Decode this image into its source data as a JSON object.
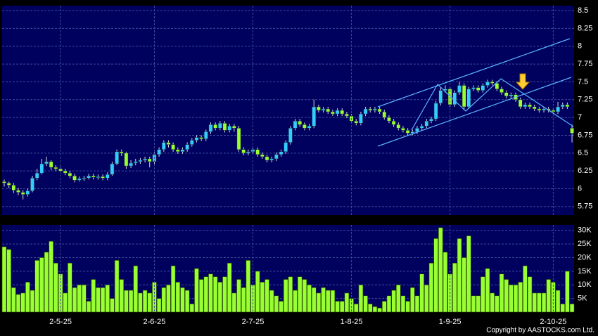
{
  "chart_data": [
    {
      "type": "candlestick",
      "up_color": "#33ccff",
      "down_color": "#99ff33",
      "grid": true,
      "ylim": [
        5.63,
        8.57
      ],
      "yticks": [
        5.75,
        6,
        6.25,
        6.5,
        6.75,
        7,
        7.25,
        7.5,
        7.75,
        8,
        8.25,
        8.5
      ],
      "categories": [
        null,
        null,
        null,
        null,
        null,
        null,
        null,
        null,
        null,
        null,
        null,
        null,
        "2-5-25",
        null,
        null,
        null,
        null,
        null,
        null,
        null,
        null,
        null,
        null,
        null,
        null,
        null,
        null,
        null,
        null,
        null,
        null,
        null,
        "2-6-25",
        null,
        null,
        null,
        null,
        null,
        null,
        null,
        null,
        null,
        null,
        null,
        null,
        null,
        null,
        null,
        null,
        null,
        null,
        null,
        null,
        "2-7-25",
        null,
        null,
        null,
        null,
        null,
        null,
        null,
        null,
        null,
        null,
        null,
        null,
        null,
        null,
        null,
        null,
        null,
        null,
        null,
        null,
        "1-8-25",
        null,
        null,
        null,
        null,
        null,
        null,
        null,
        null,
        null,
        null,
        null,
        null,
        null,
        null,
        null,
        null,
        null,
        null,
        null,
        null,
        "1-9-25",
        null,
        null,
        null,
        null,
        null,
        null,
        null,
        null,
        null,
        null,
        null,
        null,
        null,
        null,
        null,
        null,
        null,
        null,
        null,
        null,
        null,
        "2-10-25",
        null,
        null,
        null,
        null
      ],
      "open": [
        6.1,
        6.08,
        6.05,
        5.98,
        5.95,
        5.92,
        5.97,
        6.15,
        6.22,
        6.35,
        6.38,
        6.3,
        6.28,
        6.25,
        6.22,
        6.18,
        6.12,
        6.14,
        6.15,
        6.18,
        6.16,
        6.17,
        6.15,
        6.2,
        6.35,
        6.52,
        6.5,
        6.32,
        6.36,
        6.38,
        6.4,
        6.42,
        6.38,
        6.48,
        6.55,
        6.65,
        6.62,
        6.55,
        6.52,
        6.55,
        6.62,
        6.68,
        6.72,
        6.7,
        6.8,
        6.9,
        6.85,
        6.92,
        6.82,
        6.88,
        6.85,
        6.55,
        6.5,
        6.52,
        6.55,
        6.48,
        6.45,
        6.4,
        6.42,
        6.48,
        6.52,
        6.65,
        6.85,
        6.95,
        6.9,
        6.85,
        6.88,
        7.15,
        7.1,
        7.12,
        7.08,
        7.05,
        7.1,
        7.05,
        7.02,
        6.95,
        6.92,
        7.05,
        7.12,
        7.1,
        7.12,
        7.08,
        7.0,
        6.95,
        6.9,
        6.85,
        6.82,
        6.78,
        6.8,
        6.85,
        6.88,
        6.95,
        6.98,
        7.2,
        7.38,
        7.4,
        7.18,
        7.35,
        7.45,
        7.15,
        7.4,
        7.42,
        7.38,
        7.45,
        7.5,
        7.48,
        7.4,
        7.35,
        7.3,
        7.32,
        7.25,
        7.15,
        7.18,
        7.15,
        7.12,
        7.1,
        7.12,
        7.1,
        7.08,
        7.15,
        7.18,
        6.85
      ],
      "high": [
        6.13,
        6.1,
        6.08,
        6.01,
        5.98,
        6.0,
        6.18,
        6.28,
        6.42,
        6.45,
        6.4,
        6.33,
        6.31,
        6.28,
        6.25,
        6.21,
        6.17,
        6.18,
        6.21,
        6.21,
        6.2,
        6.2,
        6.23,
        6.38,
        6.55,
        6.55,
        6.52,
        6.4,
        6.42,
        6.43,
        6.45,
        6.45,
        6.51,
        6.58,
        6.68,
        6.68,
        6.65,
        6.58,
        6.58,
        6.65,
        6.71,
        6.75,
        6.75,
        6.83,
        6.93,
        6.93,
        6.95,
        6.95,
        6.91,
        6.91,
        6.88,
        6.58,
        6.55,
        6.58,
        6.58,
        6.51,
        6.48,
        6.45,
        6.51,
        6.55,
        6.68,
        6.88,
        6.98,
        6.98,
        6.93,
        6.91,
        7.25,
        7.18,
        7.15,
        7.15,
        7.11,
        7.13,
        7.13,
        7.08,
        7.05,
        6.98,
        7.08,
        7.15,
        7.15,
        7.15,
        7.15,
        7.11,
        7.03,
        6.98,
        6.93,
        6.88,
        6.85,
        6.83,
        6.88,
        6.91,
        6.98,
        7.01,
        7.23,
        7.42,
        7.45,
        7.43,
        7.38,
        7.5,
        7.48,
        7.43,
        7.45,
        7.45,
        7.48,
        7.53,
        7.53,
        7.51,
        7.43,
        7.38,
        7.35,
        7.35,
        7.28,
        7.21,
        7.21,
        7.18,
        7.15,
        7.15,
        7.15,
        7.13,
        7.22,
        7.21,
        7.21,
        6.9
      ],
      "low": [
        6.03,
        6.01,
        5.94,
        5.91,
        5.85,
        5.89,
        5.95,
        6.12,
        6.2,
        6.32,
        6.26,
        6.25,
        6.22,
        6.19,
        6.15,
        6.09,
        6.1,
        6.11,
        6.13,
        6.13,
        6.13,
        6.12,
        6.12,
        6.18,
        6.33,
        6.46,
        6.28,
        6.29,
        6.33,
        6.35,
        6.37,
        6.3,
        6.35,
        6.45,
        6.52,
        6.58,
        6.52,
        6.49,
        6.49,
        6.52,
        6.59,
        6.65,
        6.67,
        6.67,
        6.77,
        6.82,
        6.82,
        6.79,
        6.79,
        6.8,
        6.52,
        6.47,
        6.47,
        6.49,
        6.45,
        6.42,
        6.37,
        6.37,
        6.39,
        6.45,
        6.49,
        6.62,
        6.82,
        6.87,
        6.82,
        6.82,
        6.85,
        7.07,
        7.07,
        7.05,
        7.02,
        7.02,
        7.02,
        6.99,
        6.92,
        6.89,
        6.89,
        7.02,
        7.07,
        7.07,
        7.05,
        6.97,
        6.92,
        6.87,
        6.82,
        6.79,
        6.75,
        6.75,
        6.77,
        6.82,
        6.85,
        6.92,
        6.95,
        7.17,
        7.35,
        7.15,
        7.15,
        7.32,
        7.1,
        7.12,
        7.37,
        7.35,
        7.35,
        7.42,
        7.45,
        7.37,
        7.32,
        7.27,
        7.27,
        7.22,
        7.12,
        7.12,
        7.12,
        7.09,
        7.07,
        7.07,
        7.07,
        7.05,
        7.05,
        7.12,
        7.12,
        6.65
      ],
      "close": [
        6.08,
        6.05,
        5.98,
        5.95,
        5.92,
        5.97,
        6.15,
        6.22,
        6.35,
        6.38,
        6.3,
        6.28,
        6.25,
        6.22,
        6.18,
        6.12,
        6.14,
        6.15,
        6.18,
        6.16,
        6.17,
        6.15,
        6.2,
        6.35,
        6.52,
        6.5,
        6.32,
        6.36,
        6.38,
        6.4,
        6.42,
        6.38,
        6.48,
        6.55,
        6.65,
        6.62,
        6.55,
        6.52,
        6.55,
        6.62,
        6.68,
        6.72,
        6.7,
        6.8,
        6.9,
        6.85,
        6.92,
        6.82,
        6.88,
        6.85,
        6.55,
        6.5,
        6.52,
        6.55,
        6.48,
        6.45,
        6.4,
        6.42,
        6.48,
        6.52,
        6.65,
        6.85,
        6.95,
        6.9,
        6.85,
        6.88,
        7.15,
        7.1,
        7.12,
        7.08,
        7.05,
        7.1,
        7.05,
        7.02,
        6.95,
        6.92,
        7.05,
        7.12,
        7.1,
        7.12,
        7.08,
        7.0,
        6.95,
        6.9,
        6.85,
        6.82,
        6.78,
        6.8,
        6.85,
        6.88,
        6.95,
        6.98,
        7.2,
        7.38,
        7.4,
        7.18,
        7.35,
        7.45,
        7.15,
        7.4,
        7.42,
        7.38,
        7.45,
        7.5,
        7.48,
        7.4,
        7.35,
        7.3,
        7.32,
        7.25,
        7.15,
        7.18,
        7.15,
        7.12,
        7.1,
        7.12,
        7.1,
        7.08,
        7.15,
        7.18,
        7.15,
        6.78
      ]
    },
    {
      "type": "bar",
      "color": "#99ff33",
      "grid": true,
      "ylim": [
        0,
        32000
      ],
      "yticks": [
        {
          "value": 5000,
          "label": "5K"
        },
        {
          "value": 10000,
          "label": "10K"
        },
        {
          "value": 15000,
          "label": "15K"
        },
        {
          "value": 20000,
          "label": "20K"
        },
        {
          "value": 25000,
          "label": "25K"
        },
        {
          "value": 30000,
          "label": "30K"
        }
      ],
      "values": [
        24000,
        23000,
        9000,
        6500,
        7000,
        11000,
        8000,
        19000,
        20000,
        22000,
        26000,
        18000,
        14000,
        7000,
        18000,
        9000,
        10000,
        10000,
        4000,
        12000,
        9000,
        9000,
        10000,
        5000,
        19000,
        12000,
        8000,
        8000,
        17000,
        7000,
        8000,
        7000,
        11000,
        5000,
        9000,
        10000,
        17000,
        11000,
        9000,
        8000,
        3000,
        16000,
        12000,
        13000,
        14000,
        13000,
        11000,
        13000,
        18000,
        7000,
        12000,
        9000,
        19000,
        10000,
        15000,
        11000,
        12000,
        8000,
        6000,
        4000,
        12000,
        13000,
        8000,
        13000,
        12000,
        10000,
        9000,
        7000,
        9000,
        8000,
        8000,
        4000,
        4000,
        7000,
        5000,
        3000,
        10000,
        6000,
        3000,
        2000,
        1500,
        4000,
        6000,
        8000,
        10000,
        6000,
        4000,
        9000,
        6000,
        14000,
        10000,
        18000,
        27000,
        31000,
        22000,
        14000,
        18000,
        27000,
        20000,
        28000,
        6000,
        6000,
        13000,
        16000,
        7000,
        6000,
        14000,
        12000,
        10000,
        10000,
        11000,
        17000,
        13000,
        7000,
        7000,
        7000,
        12000,
        11000,
        8000,
        3000,
        15000,
        3000
      ]
    }
  ],
  "footer": {
    "copyright": "Copyright by AASTOCKS.com Ltd."
  }
}
